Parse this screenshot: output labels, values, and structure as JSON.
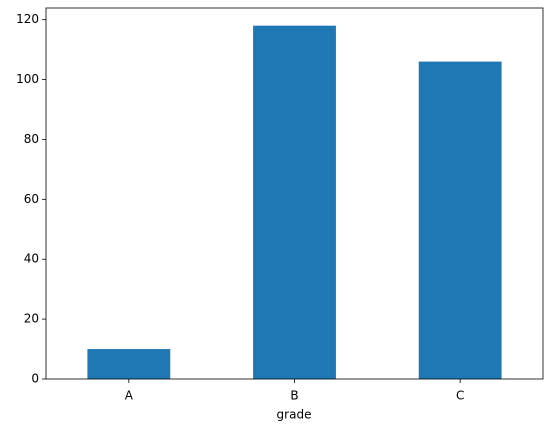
{
  "chart_data": {
    "type": "bar",
    "xlabel": "grade",
    "categories": [
      "A",
      "B",
      "C"
    ],
    "values": [
      10,
      118,
      106
    ],
    "color": "#1f77b4",
    "ylim": [
      0,
      123.9
    ],
    "yticks": [
      0,
      20,
      40,
      60,
      80,
      100,
      120
    ]
  }
}
